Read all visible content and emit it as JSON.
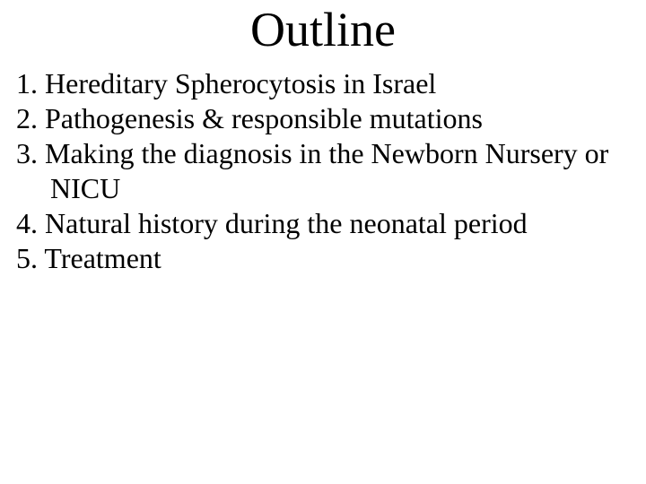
{
  "slide": {
    "title": "Outline",
    "title_fontsize": 54,
    "title_color": "#000000",
    "body_fontsize": 32,
    "body_color": "#000000",
    "background_color": "#ffffff",
    "font_family": "Times New Roman",
    "items": [
      {
        "number": "1.",
        "text": "Hereditary Spherocytosis in Israel"
      },
      {
        "number": "2.",
        "text": "Pathogenesis & responsible mutations"
      },
      {
        "number": "3.",
        "text": "Making the diagnosis in the Newborn Nursery or NICU"
      },
      {
        "number": "4.",
        "text": "Natural history during the neonatal period"
      },
      {
        "number": "5.",
        "text": "Treatment"
      }
    ]
  }
}
